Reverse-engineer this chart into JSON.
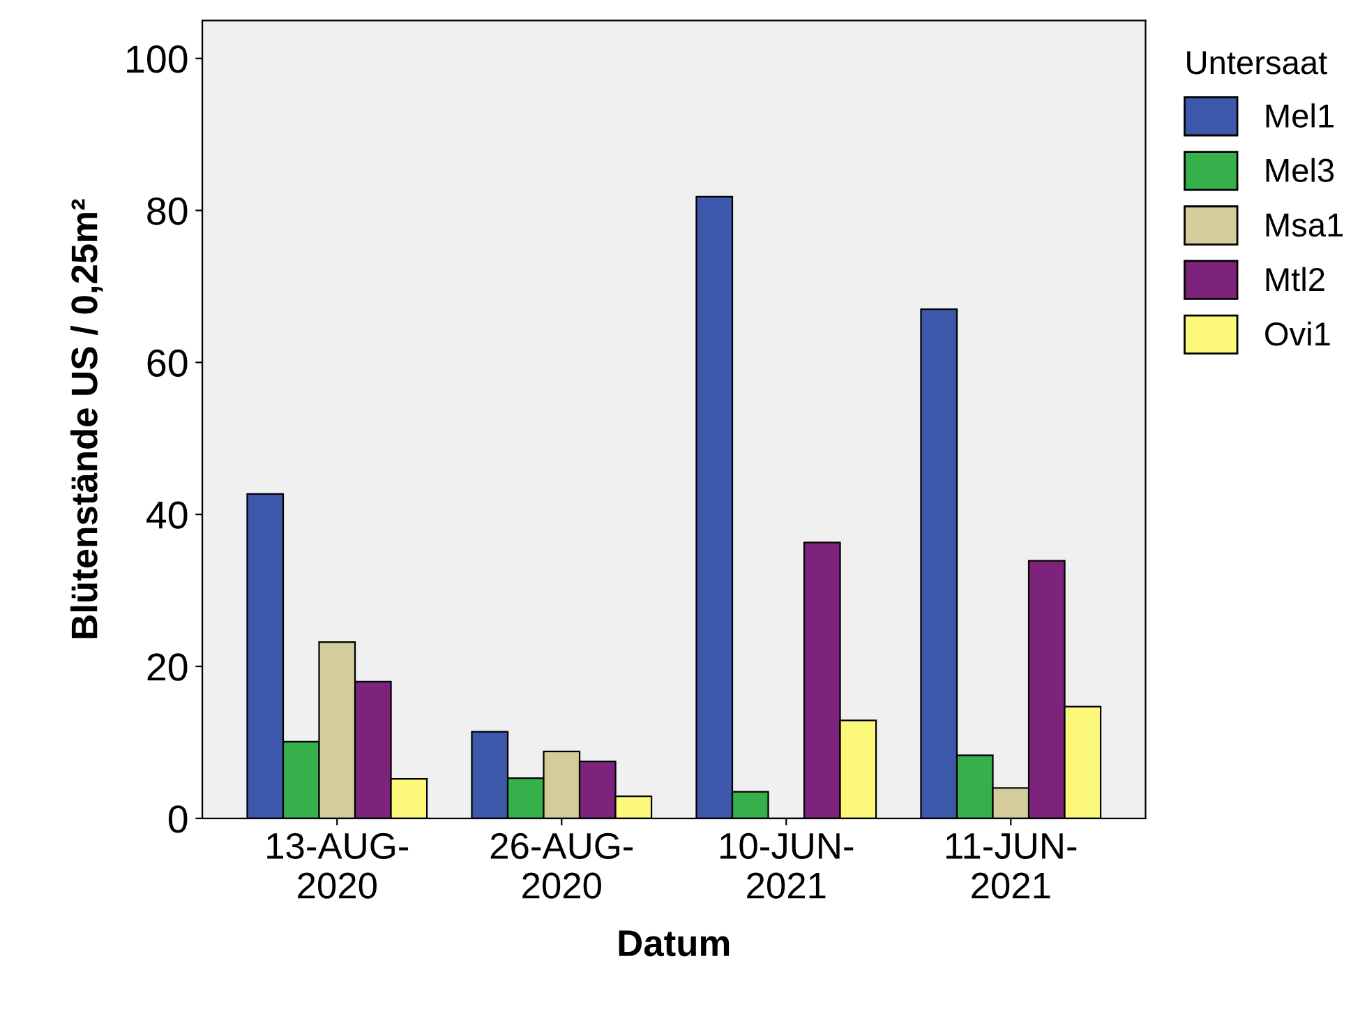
{
  "chart_data": {
    "type": "bar",
    "xlabel": "Datum",
    "ylabel": "Blütenstände US / 0,25m²",
    "legend_title": "Untersaat",
    "legend": "right",
    "categories": [
      "13-AUG-\n2020",
      "26-AUG-\n2020",
      "10-JUN-\n2021",
      "11-JUN-\n2021"
    ],
    "series": [
      {
        "name": "Mel1",
        "color": "#3e58ac",
        "values": [
          42.7,
          11.4,
          81.8,
          67.0
        ]
      },
      {
        "name": "Mel3",
        "color": "#36b04b",
        "values": [
          10.1,
          5.3,
          3.5,
          8.3
        ]
      },
      {
        "name": "Msa1",
        "color": "#d4cc9a",
        "values": [
          23.2,
          8.8,
          null,
          4.0
        ]
      },
      {
        "name": "Mtl2",
        "color": "#7d237b",
        "values": [
          18.0,
          7.5,
          36.3,
          33.9
        ]
      },
      {
        "name": "Ovi1",
        "color": "#fbf87a",
        "values": [
          5.2,
          2.9,
          12.9,
          14.7
        ]
      }
    ],
    "ylim": [
      0,
      105
    ],
    "yticks": [
      0,
      20,
      40,
      60,
      80,
      100
    ],
    "grid": false
  }
}
